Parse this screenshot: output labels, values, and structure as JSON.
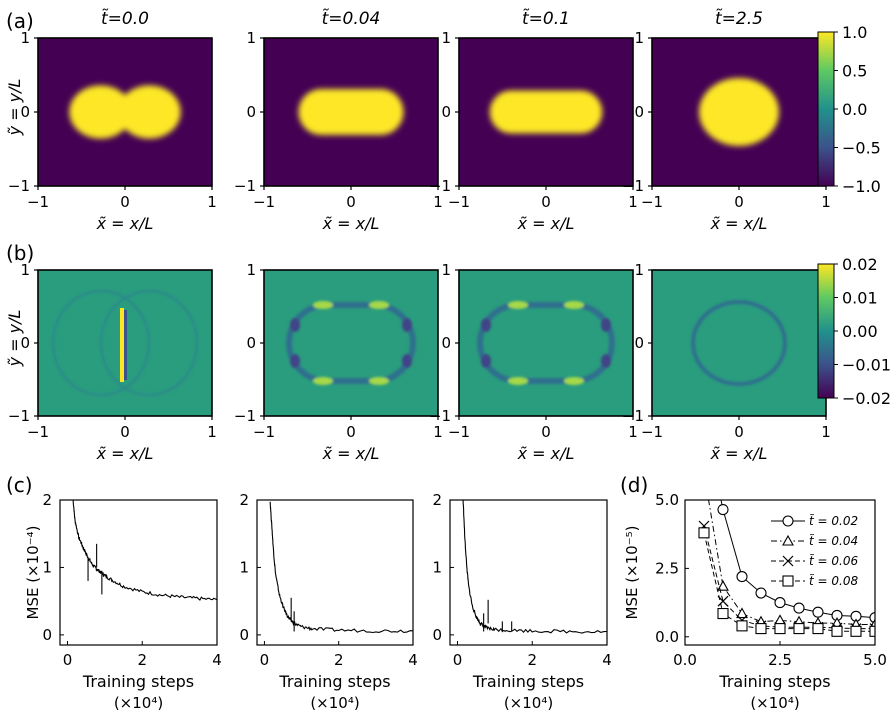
{
  "figure": {
    "row_labels": [
      "(a)",
      "(b)",
      "(c)",
      "(d)"
    ]
  },
  "chart_data": [
    {
      "type": "heatmap",
      "panel": "(a)",
      "titles": [
        "t̃=0.0",
        "t̃=0.04",
        "t̃=0.1",
        "t̃=2.5"
      ],
      "xlabel": "x̃ = x/L",
      "ylabel": "ỹ = y/L",
      "xticks": [
        "−1",
        "0",
        "1"
      ],
      "yticks": [
        "1",
        "0",
        "−1"
      ],
      "xlim": [
        -1,
        1
      ],
      "ylim": [
        -1,
        1
      ],
      "colorbar": {
        "range": [
          -1.0,
          1.0
        ],
        "ticks": [
          "1.0",
          "0.5",
          "0.0",
          "−0.5",
          "−1.0"
        ],
        "colormap": "viridis"
      },
      "fields": [
        {
          "shape": "two-disks",
          "radius": 0.36,
          "centers": [
            -0.28,
            0.28
          ]
        },
        {
          "shape": "capsule",
          "half_length": 0.34,
          "radius": 0.31
        },
        {
          "shape": "capsule",
          "half_length": 0.4,
          "radius": 0.29
        },
        {
          "shape": "disk",
          "radius": 0.46
        }
      ]
    },
    {
      "type": "heatmap",
      "panel": "(b)",
      "xlabel": "x̃ = x/L",
      "ylabel": "ỹ = y/L",
      "xticks": [
        "−1",
        "0",
        "1"
      ],
      "yticks": [
        "1",
        "0",
        "−1"
      ],
      "xlim": [
        -1,
        1
      ],
      "ylim": [
        -1,
        1
      ],
      "colorbar": {
        "range": [
          -0.02,
          0.02
        ],
        "ticks": [
          "0.02",
          "0.01",
          "0.00",
          "−0.01",
          "−0.02"
        ],
        "colormap": "viridis"
      },
      "background_value": 0.002
    },
    {
      "type": "line",
      "panel": "(c)",
      "xlabel": "Training steps",
      "xlabel_unit": "(×10⁴)",
      "ylabel": "MSE (×10⁻⁴)",
      "xlim": [
        -0.2,
        4.0
      ],
      "ylim": [
        -0.15,
        2.0
      ],
      "xticks": [
        "0",
        "2",
        "4"
      ],
      "yticks": [
        "2",
        "1",
        "0"
      ],
      "series": [
        {
          "x": [
            0.15,
            0.2,
            0.3,
            0.4,
            0.5,
            0.6,
            0.7,
            0.8,
            0.9,
            1.0,
            1.2,
            1.5,
            2.0,
            2.5,
            3.0,
            3.5,
            4.0
          ],
          "values": [
            2.0,
            1.7,
            1.45,
            1.32,
            1.2,
            1.1,
            1.02,
            0.97,
            0.92,
            0.88,
            0.81,
            0.72,
            0.64,
            0.59,
            0.56,
            0.54,
            0.52
          ],
          "spikes": [
            [
              0.55,
              1.15
            ],
            [
              0.78,
              1.35
            ],
            [
              0.92,
              0.95
            ]
          ]
        },
        {
          "x": [
            0.15,
            0.2,
            0.25,
            0.3,
            0.4,
            0.5,
            0.6,
            0.7,
            0.8,
            1.0,
            1.3,
            2.0,
            3.0,
            4.0
          ],
          "values": [
            2.0,
            1.6,
            1.2,
            0.9,
            0.6,
            0.42,
            0.3,
            0.22,
            0.17,
            0.12,
            0.09,
            0.07,
            0.06,
            0.06
          ],
          "spikes": [
            [
              0.72,
              0.55
            ],
            [
              0.8,
              0.35
            ]
          ]
        },
        {
          "x": [
            0.15,
            0.2,
            0.25,
            0.3,
            0.4,
            0.5,
            0.6,
            0.7,
            0.8,
            1.0,
            1.3,
            2.0,
            3.0,
            4.0
          ],
          "values": [
            2.0,
            1.4,
            1.0,
            0.72,
            0.42,
            0.27,
            0.18,
            0.13,
            0.1,
            0.08,
            0.07,
            0.06,
            0.05,
            0.05
          ],
          "spikes": [
            [
              0.7,
              0.32
            ],
            [
              0.82,
              0.52
            ],
            [
              1.2,
              0.2
            ],
            [
              1.45,
              0.2
            ]
          ]
        }
      ]
    },
    {
      "type": "line",
      "panel": "(d)",
      "xlabel": "Training steps",
      "xlabel_unit": "(×10⁴)",
      "ylabel": "MSE (×10⁻⁵)",
      "xlim": [
        0.0,
        5.0
      ],
      "ylim": [
        -0.3,
        5.0
      ],
      "xticks": [
        "0.0",
        "2.5",
        "5.0"
      ],
      "yticks": [
        "5.0",
        "2.5",
        "0.0"
      ],
      "legend_position": "top-right",
      "series": [
        {
          "name": "t̃ = 0.02",
          "marker": "circle",
          "dash": "solid",
          "x": [
            0.5,
            1.0,
            1.5,
            2.0,
            2.5,
            3.0,
            3.5,
            4.0,
            4.5,
            5.0
          ],
          "values": [
            8.0,
            4.65,
            2.2,
            1.6,
            1.25,
            1.05,
            0.9,
            0.78,
            0.75,
            0.7
          ]
        },
        {
          "name": "t̃ = 0.04",
          "marker": "triangle",
          "dash": "dashdot",
          "x": [
            0.5,
            1.0,
            1.5,
            2.0,
            2.5,
            3.0,
            3.5,
            4.0,
            4.5,
            5.0
          ],
          "values": [
            6.0,
            1.85,
            0.85,
            0.55,
            0.6,
            0.55,
            0.5,
            0.5,
            0.45,
            0.45
          ]
        },
        {
          "name": "t̃ = 0.06",
          "marker": "x",
          "dash": "dashed",
          "x": [
            0.5,
            1.0,
            1.5,
            2.0,
            2.5,
            3.0,
            3.5,
            4.0,
            4.5,
            5.0
          ],
          "values": [
            4.05,
            1.3,
            0.6,
            0.4,
            0.35,
            0.35,
            0.35,
            0.32,
            0.3,
            0.3
          ]
        },
        {
          "name": "t̃ = 0.08",
          "marker": "square",
          "dash": "dashed",
          "x": [
            0.5,
            1.0,
            1.5,
            2.0,
            2.5,
            3.0,
            3.5,
            4.0,
            4.5,
            5.0
          ],
          "values": [
            3.8,
            0.85,
            0.4,
            0.3,
            0.3,
            0.3,
            0.3,
            0.2,
            0.2,
            0.2
          ]
        }
      ]
    }
  ]
}
